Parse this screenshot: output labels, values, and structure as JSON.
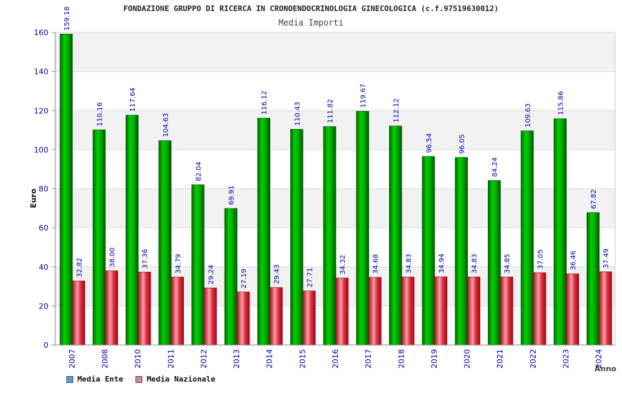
{
  "header": {
    "title": "FONDAZIONE GRUPPO DI RICERCA IN CRONOENDOCRINOLOGIA GINECOLOGICA (c.f.97519630012)",
    "subtitle": "Media Importi"
  },
  "legend": {
    "items": [
      {
        "label": "Media Ente",
        "color": "#5b9bd5"
      },
      {
        "label": "Media Nazionale",
        "color": "#d67fa8"
      }
    ]
  },
  "chart_data": {
    "type": "bar",
    "title": "FONDAZIONE GRUPPO DI RICERCA IN CRONOENDOCRINOLOGIA GINECOLOGICA (c.f.97519630012)",
    "subtitle": "Media Importi",
    "xlabel": "Anno",
    "ylabel": "Euro",
    "ylim": [
      0,
      160
    ],
    "yticks": [
      0,
      20,
      40,
      60,
      80,
      100,
      120,
      140,
      160
    ],
    "categories": [
      "2007",
      "2008",
      "2010",
      "2011",
      "2012",
      "2013",
      "2014",
      "2015",
      "2016",
      "2017",
      "2018",
      "2019",
      "2020",
      "2021",
      "2022",
      "2023",
      "2024"
    ],
    "series": [
      {
        "name": "Media Ente",
        "color": "#00b400",
        "values": [
          159.18,
          110.16,
          117.64,
          104.63,
          82.04,
          69.91,
          116.12,
          110.43,
          111.82,
          119.67,
          112.12,
          96.54,
          96.05,
          84.24,
          109.63,
          115.86,
          67.82
        ],
        "labels": [
          "159.18",
          "110.16",
          "117.64",
          "104.63",
          "82.04",
          "69.91",
          "116.12",
          "110.43",
          "111.82",
          "119.67",
          "112.12",
          "96.54",
          "96.05",
          "84.24",
          "109.63",
          "115.86",
          "67.82"
        ]
      },
      {
        "name": "Media Nazionale",
        "color": "#e8323c",
        "values": [
          32.82,
          38.0,
          37.36,
          34.79,
          29.24,
          27.19,
          29.43,
          27.71,
          34.32,
          34.68,
          34.83,
          34.94,
          34.83,
          34.85,
          37.05,
          36.46,
          37.49
        ],
        "labels": [
          "32.82",
          "38.00",
          "37.36",
          "34.79",
          "29.24",
          "27.19",
          "29.43",
          "27.71",
          "34.32",
          "34.68",
          "34.83",
          "34.94",
          "34.83",
          "34.85",
          "37.05",
          "36.46",
          "37.49"
        ]
      }
    ],
    "grid": true
  }
}
